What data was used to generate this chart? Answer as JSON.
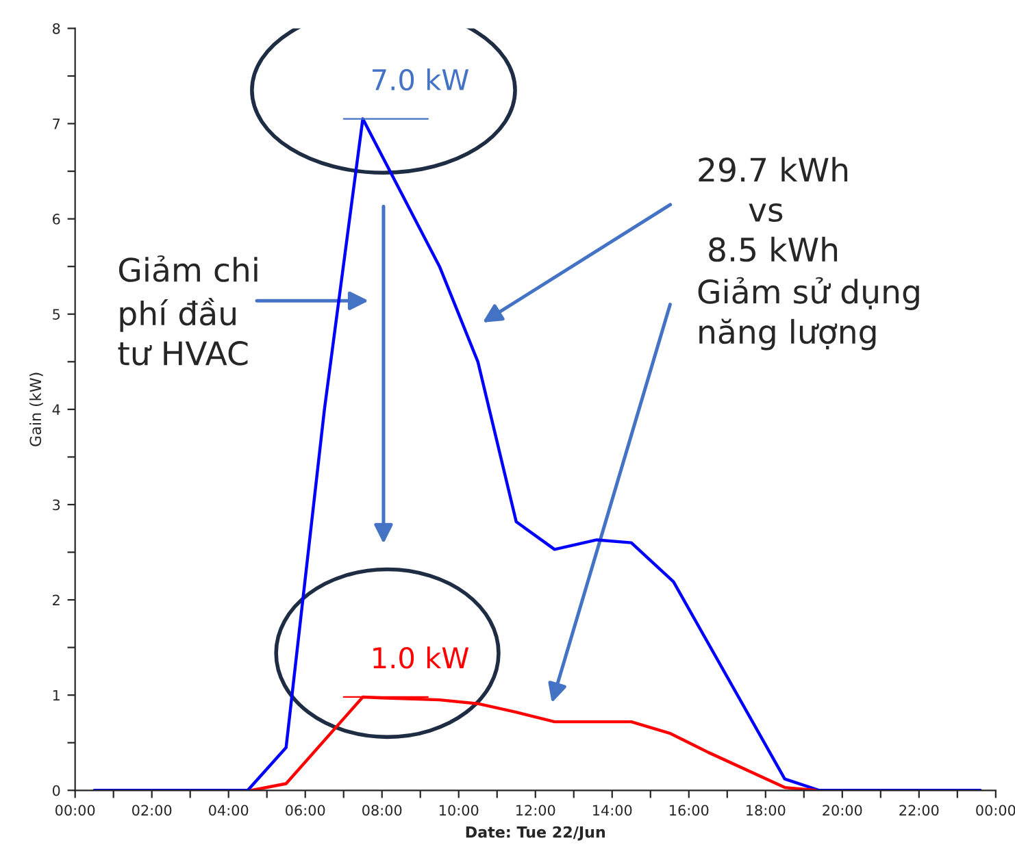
{
  "chart_data": {
    "type": "line",
    "xlabel": "Date: Tue 22/Jun",
    "ylabel": "Gain (kW)",
    "xlim": [
      0,
      24
    ],
    "ylim": [
      0,
      8
    ],
    "xticks": [
      {
        "value": 0,
        "label": "00:00"
      },
      {
        "value": 1,
        "label": null
      },
      {
        "value": 2,
        "label": "02:00"
      },
      {
        "value": 3,
        "label": null
      },
      {
        "value": 4,
        "label": "04:00"
      },
      {
        "value": 5,
        "label": null
      },
      {
        "value": 6,
        "label": "06:00"
      },
      {
        "value": 7,
        "label": null
      },
      {
        "value": 8,
        "label": "08:00"
      },
      {
        "value": 9,
        "label": null
      },
      {
        "value": 10,
        "label": "10:00"
      },
      {
        "value": 11,
        "label": null
      },
      {
        "value": 12,
        "label": "12:00"
      },
      {
        "value": 13,
        "label": null
      },
      {
        "value": 14,
        "label": "14:00"
      },
      {
        "value": 15,
        "label": null
      },
      {
        "value": 16,
        "label": "16:00"
      },
      {
        "value": 17,
        "label": null
      },
      {
        "value": 18,
        "label": "18:00"
      },
      {
        "value": 19,
        "label": null
      },
      {
        "value": 20,
        "label": "20:00"
      },
      {
        "value": 21,
        "label": null
      },
      {
        "value": 22,
        "label": "22:00"
      },
      {
        "value": 23,
        "label": null
      },
      {
        "value": 24,
        "label": "00:00"
      }
    ],
    "yticks": [
      0,
      {
        "value": 0.5,
        "label": null
      },
      1,
      {
        "value": 1.5,
        "label": null
      },
      2,
      {
        "value": 2.5,
        "label": null
      },
      3,
      {
        "value": 3.5,
        "label": null
      },
      4,
      {
        "value": 4.5,
        "label": null
      },
      5,
      {
        "value": 5.5,
        "label": null
      },
      6,
      {
        "value": 6.5,
        "label": null
      },
      7,
      {
        "value": 7.5,
        "label": null
      },
      8
    ],
    "grid": false,
    "legend": false,
    "marker": "none",
    "line_style": "solid",
    "series": [
      {
        "color": "#0000ff",
        "x": [
          0.5,
          4.5,
          5.5,
          6.5,
          7.5,
          9.5,
          10.5,
          11.5,
          12.5,
          13.6,
          14.5,
          15.6,
          18.5,
          19.4,
          23.6
        ],
        "values": [
          0,
          0,
          0.45,
          4.0,
          7.05,
          5.5,
          4.5,
          2.82,
          2.53,
          2.63,
          2.6,
          2.19,
          0.12,
          0,
          0
        ]
      },
      {
        "color": "#ff0000",
        "x": [
          4.6,
          5.5,
          7.5,
          8.0,
          9.5,
          10.5,
          11.5,
          12.5,
          14.5,
          15.5,
          16.5,
          18.5,
          19.3
        ],
        "values": [
          0,
          0.07,
          0.98,
          0.97,
          0.95,
          0.91,
          0.82,
          0.72,
          0.72,
          0.6,
          0.4,
          0.03,
          0
        ]
      }
    ],
    "annotations": [
      {
        "text": "7.0 kW",
        "x": 7.5,
        "y": 7.05
      },
      {
        "text": "1.0 kW",
        "x": 7.5,
        "y": 0.98
      },
      "Giảm chi\nphí đầu\ntư HVAC",
      "29.7 kWh\n     vs\n 8.5 kWh\nGiảm sử dụng\nnăng lượng"
    ]
  }
}
